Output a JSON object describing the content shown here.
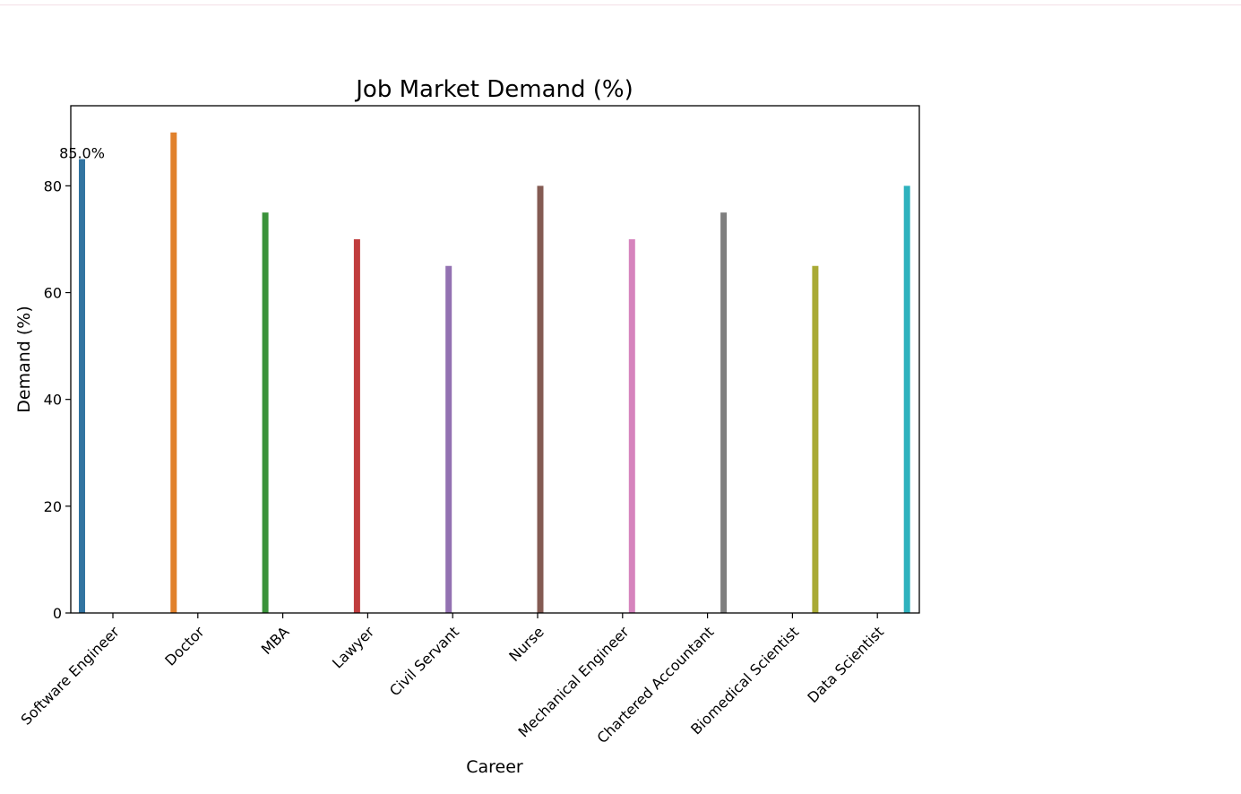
{
  "chart_data": {
    "type": "bar",
    "title": "Job Market Demand (%)",
    "xlabel": "Career",
    "ylabel": "Demand (%)",
    "ylim": [
      0,
      95
    ],
    "yticks": [
      "0",
      "20",
      "40",
      "60",
      "80"
    ],
    "grid": false,
    "categories": [
      "Software Engineer",
      "Doctor",
      "MBA",
      "Lawyer",
      "Civil Servant",
      "Nurse",
      "Mechanical Engineer",
      "Chartered Accountant",
      "Biomedical Scientist",
      "Data Scientist"
    ],
    "values": [
      85,
      90,
      75,
      70,
      65,
      80,
      70,
      75,
      65,
      80
    ],
    "colors": [
      "#3274a1",
      "#e1812c",
      "#3a923a",
      "#c03d3e",
      "#9372b2",
      "#845b53",
      "#d684bd",
      "#7f7f7f",
      "#a9aa35",
      "#2eb2be"
    ],
    "annotations": [
      {
        "category": "Software Engineer",
        "text": "85.0%"
      }
    ]
  }
}
